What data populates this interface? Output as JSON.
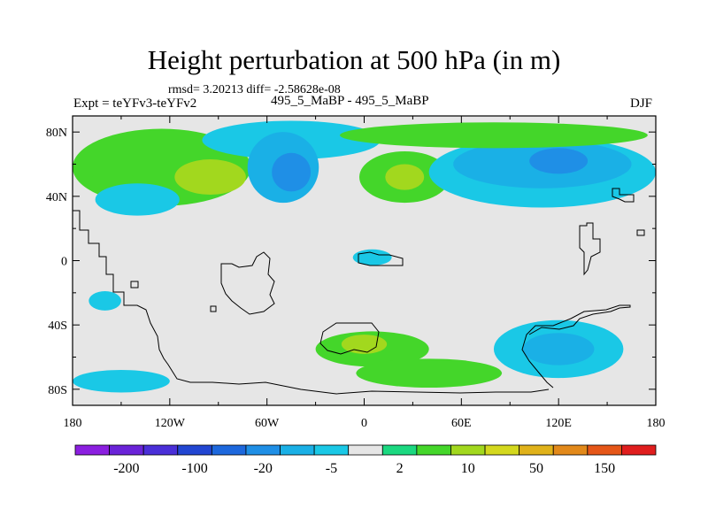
{
  "chart_data": {
    "type": "heatmap",
    "title": "Height perturbation at 500 hPa (in m)",
    "stats": "rmsd= 3.20213 diff= -2.58628e-08",
    "experiment": "Expt = teYFv3-teYFv2",
    "subtitle": "495_5_MaBP - 495_5_MaBP",
    "season": "DJF",
    "x_axis": {
      "range": [
        -180,
        180
      ],
      "ticks": [
        -180,
        -120,
        -60,
        0,
        60,
        120,
        180
      ],
      "tick_labels": [
        "180",
        "120W",
        "60W",
        "0",
        "60E",
        "120E",
        "180"
      ]
    },
    "y_axis": {
      "range": [
        -90,
        90
      ],
      "ticks": [
        80,
        40,
        0,
        -40,
        -80
      ],
      "tick_labels": [
        "80N",
        "40N",
        "0",
        "40S",
        "80S"
      ]
    },
    "levels": [
      "-200",
      "-100",
      "-20",
      "-5",
      "2",
      "10",
      "50",
      "150"
    ],
    "level_colors": [
      "#8b1fe0",
      "#6a23d8",
      "#4a2fd8",
      "#2246d2",
      "#1d68dd",
      "#1f8fe6",
      "#1ab0e6",
      "#1ac8e6",
      "#e6e6e6",
      "#1bd880",
      "#44d62a",
      "#a2d81e",
      "#d4d81e",
      "#e0b21a",
      "#e2891a",
      "#e55618",
      "#e01e1e"
    ],
    "blobs": [
      {
        "lon": -125,
        "lat": 58,
        "rlon": 55,
        "rlat": 24,
        "value": 6
      },
      {
        "lon": -95,
        "lat": 52,
        "rlon": 22,
        "rlat": 11,
        "value": 12
      },
      {
        "lon": -155,
        "lat": 48,
        "rlon": 15,
        "rlat": 8,
        "value": 6
      },
      {
        "lon": -140,
        "lat": 38,
        "rlon": 26,
        "rlat": 10,
        "value": -4
      },
      {
        "lon": -45,
        "lat": 75,
        "rlon": 55,
        "rlat": 12,
        "value": -3
      },
      {
        "lon": -50,
        "lat": 58,
        "rlon": 22,
        "rlat": 22,
        "value": -6
      },
      {
        "lon": -45,
        "lat": 55,
        "rlon": 12,
        "rlat": 12,
        "value": -12
      },
      {
        "lon": 25,
        "lat": 52,
        "rlon": 28,
        "rlat": 16,
        "value": 6
      },
      {
        "lon": 25,
        "lat": 52,
        "rlon": 12,
        "rlat": 8,
        "value": 12
      },
      {
        "lon": 110,
        "lat": 55,
        "rlon": 70,
        "rlat": 22,
        "value": -4
      },
      {
        "lon": 110,
        "lat": 60,
        "rlon": 55,
        "rlat": 15,
        "value": -7
      },
      {
        "lon": 120,
        "lat": 62,
        "rlon": 18,
        "rlat": 8,
        "value": -14
      },
      {
        "lon": 80,
        "lat": 78,
        "rlon": 95,
        "rlat": 8,
        "value": 6
      },
      {
        "lon": 5,
        "lat": 2,
        "rlon": 12,
        "rlat": 5,
        "value": -4
      },
      {
        "lon": 5,
        "lat": -55,
        "rlon": 35,
        "rlat": 11,
        "value": 6
      },
      {
        "lon": 0,
        "lat": -52,
        "rlon": 14,
        "rlat": 6,
        "value": 12
      },
      {
        "lon": 40,
        "lat": -70,
        "rlon": 45,
        "rlat": 9,
        "value": 6
      },
      {
        "lon": 120,
        "lat": -55,
        "rlon": 40,
        "rlat": 18,
        "value": -4
      },
      {
        "lon": 120,
        "lat": -55,
        "rlon": 22,
        "rlat": 10,
        "value": -7
      },
      {
        "lon": -150,
        "lat": -75,
        "rlon": 30,
        "rlat": 7,
        "value": -4
      },
      {
        "lon": -160,
        "lat": -25,
        "rlon": 10,
        "rlat": 6,
        "value": -4
      }
    ]
  }
}
